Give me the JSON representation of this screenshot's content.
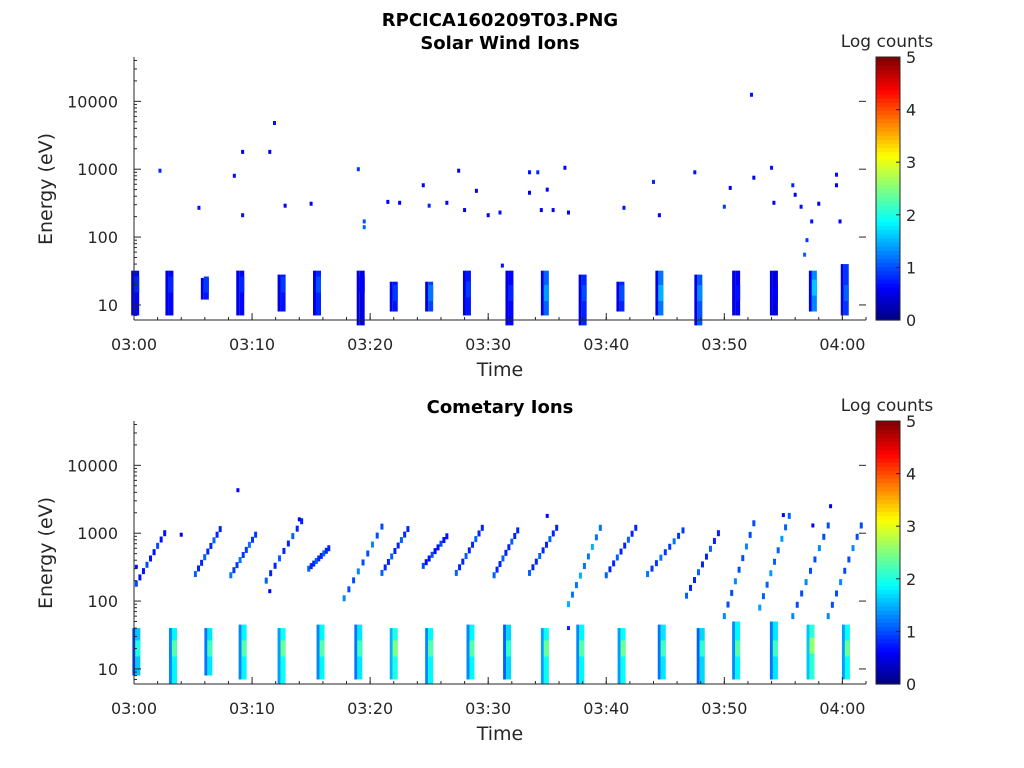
{
  "figure": {
    "main_title": "RPCICA160209T03.PNG"
  },
  "chart_data": [
    {
      "type": "heatmap",
      "title": "Solar Wind Ions",
      "xlabel": "Time",
      "ylabel": "Energy (eV)",
      "x_range": [
        "03:00",
        "04:02"
      ],
      "x_ticks": [
        "03:00",
        "03:10",
        "03:20",
        "03:30",
        "03:40",
        "03:50",
        "04:00"
      ],
      "y_scale": "log",
      "y_range": [
        6,
        45000
      ],
      "y_ticks": [
        "10",
        "100",
        "1000",
        "10000"
      ],
      "colorbar": {
        "title": "Log counts",
        "range": [
          0,
          5
        ],
        "ticks": [
          "0",
          "1",
          "2",
          "3",
          "4",
          "5"
        ],
        "colormap": "jet"
      },
      "blocks": [
        {
          "t_min": 0.1,
          "e": 20,
          "v": 0.8,
          "span": [
            7,
            32
          ]
        },
        {
          "t_min": 3.0,
          "e": 20,
          "v": 0.8,
          "span": [
            7,
            32
          ]
        },
        {
          "t_min": 6.0,
          "e": 20,
          "v": 0.9,
          "span": [
            12,
            25
          ]
        },
        {
          "t_min": 9.0,
          "e": 20,
          "v": 0.8,
          "span": [
            7,
            32
          ]
        },
        {
          "t_min": 12.5,
          "e": 20,
          "v": 0.9,
          "span": [
            8,
            28
          ]
        },
        {
          "t_min": 15.5,
          "e": 20,
          "v": 1.0,
          "span": [
            7,
            32
          ]
        },
        {
          "t_min": 19.2,
          "e": 20,
          "v": 0.6,
          "span": [
            5,
            32
          ]
        },
        {
          "t_min": 22.0,
          "e": 15,
          "v": 0.9,
          "span": [
            8,
            22
          ]
        },
        {
          "t_min": 25.0,
          "e": 15,
          "v": 1.2,
          "span": [
            8,
            22
          ]
        },
        {
          "t_min": 28.2,
          "e": 17,
          "v": 0.9,
          "span": [
            7,
            32
          ]
        },
        {
          "t_min": 31.8,
          "e": 15,
          "v": 0.8,
          "span": [
            5,
            32
          ]
        },
        {
          "t_min": 34.8,
          "e": 15,
          "v": 1.4,
          "span": [
            7,
            32
          ]
        },
        {
          "t_min": 38.0,
          "e": 15,
          "v": 1.0,
          "span": [
            5,
            28
          ]
        },
        {
          "t_min": 41.2,
          "e": 15,
          "v": 1.0,
          "span": [
            8,
            22
          ]
        },
        {
          "t_min": 44.5,
          "e": 15,
          "v": 1.5,
          "span": [
            7,
            32
          ]
        },
        {
          "t_min": 47.8,
          "e": 15,
          "v": 1.3,
          "span": [
            5,
            28
          ]
        },
        {
          "t_min": 51.0,
          "e": 15,
          "v": 0.7,
          "span": [
            7,
            32
          ]
        },
        {
          "t_min": 54.2,
          "e": 15,
          "v": 0.6,
          "span": [
            7,
            32
          ]
        },
        {
          "t_min": 57.5,
          "e": 18,
          "v": 1.6,
          "span": [
            8,
            32
          ]
        },
        {
          "t_min": 60.2,
          "e": 15,
          "v": 1.1,
          "span": [
            7,
            40
          ]
        }
      ],
      "scatter": [
        {
          "t_min": 2.2,
          "e": 950,
          "v": 0.8
        },
        {
          "t_min": 5.5,
          "e": 270,
          "v": 0.7
        },
        {
          "t_min": 8.5,
          "e": 800,
          "v": 0.7
        },
        {
          "t_min": 9.2,
          "e": 1800,
          "v": 0.6
        },
        {
          "t_min": 9.2,
          "e": 210,
          "v": 0.7
        },
        {
          "t_min": 11.5,
          "e": 1800,
          "v": 0.6
        },
        {
          "t_min": 11.9,
          "e": 4800,
          "v": 0.7
        },
        {
          "t_min": 12.8,
          "e": 290,
          "v": 0.6
        },
        {
          "t_min": 15.0,
          "e": 310,
          "v": 0.6
        },
        {
          "t_min": 19.0,
          "e": 1000,
          "v": 0.9
        },
        {
          "t_min": 19.5,
          "e": 170,
          "v": 1.0
        },
        {
          "t_min": 19.5,
          "e": 140,
          "v": 1.1
        },
        {
          "t_min": 21.5,
          "e": 330,
          "v": 0.6
        },
        {
          "t_min": 22.5,
          "e": 320,
          "v": 0.6
        },
        {
          "t_min": 24.5,
          "e": 580,
          "v": 0.6
        },
        {
          "t_min": 25.0,
          "e": 290,
          "v": 0.8
        },
        {
          "t_min": 26.5,
          "e": 320,
          "v": 0.6
        },
        {
          "t_min": 27.5,
          "e": 950,
          "v": 0.6
        },
        {
          "t_min": 28.0,
          "e": 250,
          "v": 0.6
        },
        {
          "t_min": 29.0,
          "e": 480,
          "v": 0.6
        },
        {
          "t_min": 30.0,
          "e": 210,
          "v": 0.6
        },
        {
          "t_min": 31.0,
          "e": 230,
          "v": 0.7
        },
        {
          "t_min": 31.2,
          "e": 38,
          "v": 0.7
        },
        {
          "t_min": 33.5,
          "e": 900,
          "v": 0.7
        },
        {
          "t_min": 33.5,
          "e": 450,
          "v": 0.6
        },
        {
          "t_min": 34.2,
          "e": 900,
          "v": 0.8
        },
        {
          "t_min": 34.5,
          "e": 250,
          "v": 0.6
        },
        {
          "t_min": 35.0,
          "e": 500,
          "v": 0.6
        },
        {
          "t_min": 35.5,
          "e": 250,
          "v": 0.6
        },
        {
          "t_min": 36.5,
          "e": 1050,
          "v": 0.6
        },
        {
          "t_min": 36.8,
          "e": 230,
          "v": 0.6
        },
        {
          "t_min": 41.5,
          "e": 270,
          "v": 0.7
        },
        {
          "t_min": 44.0,
          "e": 650,
          "v": 0.8
        },
        {
          "t_min": 44.5,
          "e": 210,
          "v": 0.6
        },
        {
          "t_min": 47.5,
          "e": 900,
          "v": 0.7
        },
        {
          "t_min": 50.0,
          "e": 280,
          "v": 0.9
        },
        {
          "t_min": 50.5,
          "e": 530,
          "v": 0.6
        },
        {
          "t_min": 52.3,
          "e": 12500,
          "v": 0.7
        },
        {
          "t_min": 52.5,
          "e": 750,
          "v": 0.6
        },
        {
          "t_min": 54.0,
          "e": 1050,
          "v": 0.7
        },
        {
          "t_min": 54.2,
          "e": 320,
          "v": 0.6
        },
        {
          "t_min": 55.8,
          "e": 580,
          "v": 0.8
        },
        {
          "t_min": 56.0,
          "e": 420,
          "v": 0.6
        },
        {
          "t_min": 56.5,
          "e": 280,
          "v": 0.7
        },
        {
          "t_min": 56.8,
          "e": 55,
          "v": 1.1
        },
        {
          "t_min": 57.0,
          "e": 90,
          "v": 0.9
        },
        {
          "t_min": 57.4,
          "e": 170,
          "v": 0.7
        },
        {
          "t_min": 58.0,
          "e": 310,
          "v": 0.6
        },
        {
          "t_min": 59.5,
          "e": 830,
          "v": 0.7
        },
        {
          "t_min": 59.5,
          "e": 580,
          "v": 0.6
        },
        {
          "t_min": 59.8,
          "e": 170,
          "v": 0.6
        }
      ]
    },
    {
      "type": "heatmap",
      "title": "Cometary Ions",
      "xlabel": "Time",
      "ylabel": "Energy (eV)",
      "x_range": [
        "03:00",
        "04:02"
      ],
      "x_ticks": [
        "03:00",
        "03:10",
        "03:20",
        "03:30",
        "03:40",
        "03:50",
        "04:00"
      ],
      "y_scale": "log",
      "y_range": [
        6,
        45000
      ],
      "y_ticks": [
        "10",
        "100",
        "1000",
        "10000"
      ],
      "colorbar": {
        "title": "Log counts",
        "range": [
          0,
          5
        ],
        "ticks": [
          "0",
          "1",
          "2",
          "3",
          "4",
          "5"
        ],
        "colormap": "jet"
      },
      "blocks": [
        {
          "t_min": 0.2,
          "e": 20,
          "v": 2.0,
          "span": [
            8,
            40
          ]
        },
        {
          "t_min": 3.3,
          "e": 20,
          "v": 2.3,
          "span": [
            6,
            40
          ]
        },
        {
          "t_min": 6.3,
          "e": 20,
          "v": 2.2,
          "span": [
            8,
            40
          ]
        },
        {
          "t_min": 9.2,
          "e": 20,
          "v": 2.3,
          "span": [
            7,
            45
          ]
        },
        {
          "t_min": 12.5,
          "e": 20,
          "v": 2.4,
          "span": [
            6,
            40
          ]
        },
        {
          "t_min": 15.8,
          "e": 20,
          "v": 2.3,
          "span": [
            7,
            45
          ]
        },
        {
          "t_min": 19.0,
          "e": 20,
          "v": 2.2,
          "span": [
            7,
            45
          ]
        },
        {
          "t_min": 22.0,
          "e": 20,
          "v": 2.5,
          "span": [
            7,
            40
          ]
        },
        {
          "t_min": 25.0,
          "e": 20,
          "v": 2.3,
          "span": [
            6,
            40
          ]
        },
        {
          "t_min": 28.5,
          "e": 20,
          "v": 2.3,
          "span": [
            7,
            45
          ]
        },
        {
          "t_min": 31.6,
          "e": 20,
          "v": 2.1,
          "span": [
            7,
            45
          ]
        },
        {
          "t_min": 34.8,
          "e": 20,
          "v": 2.4,
          "span": [
            6,
            40
          ]
        },
        {
          "t_min": 37.8,
          "e": 20,
          "v": 2.3,
          "span": [
            6,
            45
          ]
        },
        {
          "t_min": 41.3,
          "e": 20,
          "v": 2.4,
          "span": [
            6,
            40
          ]
        },
        {
          "t_min": 44.7,
          "e": 20,
          "v": 2.2,
          "span": [
            7,
            45
          ]
        },
        {
          "t_min": 48.0,
          "e": 20,
          "v": 2.1,
          "span": [
            6,
            40
          ]
        },
        {
          "t_min": 51.0,
          "e": 20,
          "v": 2.3,
          "span": [
            7,
            50
          ]
        },
        {
          "t_min": 54.2,
          "e": 20,
          "v": 2.2,
          "span": [
            7,
            50
          ]
        },
        {
          "t_min": 57.3,
          "e": 22,
          "v": 2.6,
          "span": [
            7,
            45
          ]
        },
        {
          "t_min": 60.3,
          "e": 20,
          "v": 2.4,
          "span": [
            7,
            45
          ]
        }
      ],
      "streaks": [
        {
          "t_start": 0.2,
          "t_end": 2.6,
          "e_start": 180,
          "e_end": 1000,
          "v": 0.7
        },
        {
          "t_start": 5.2,
          "t_end": 7.3,
          "e_start": 250,
          "e_end": 1150,
          "v": 0.8
        },
        {
          "t_start": 8.2,
          "t_end": 10.3,
          "e_start": 240,
          "e_end": 950,
          "v": 0.9
        },
        {
          "t_start": 11.2,
          "t_end": 14.2,
          "e_start": 200,
          "e_end": 1500,
          "v": 0.8
        },
        {
          "t_start": 14.8,
          "t_end": 16.5,
          "e_start": 300,
          "e_end": 600,
          "v": 0.8
        },
        {
          "t_start": 17.8,
          "t_end": 21.0,
          "e_start": 110,
          "e_end": 1250,
          "v": 1.0
        },
        {
          "t_start": 21.0,
          "t_end": 23.2,
          "e_start": 260,
          "e_end": 1150,
          "v": 0.8
        },
        {
          "t_start": 24.5,
          "t_end": 26.5,
          "e_start": 330,
          "e_end": 900,
          "v": 0.7
        },
        {
          "t_start": 27.3,
          "t_end": 29.5,
          "e_start": 260,
          "e_end": 1200,
          "v": 0.8
        },
        {
          "t_start": 30.5,
          "t_end": 32.5,
          "e_start": 240,
          "e_end": 1100,
          "v": 0.8
        },
        {
          "t_start": 33.5,
          "t_end": 35.8,
          "e_start": 260,
          "e_end": 1200,
          "v": 0.8
        },
        {
          "t_start": 36.8,
          "t_end": 39.5,
          "e_start": 90,
          "e_end": 1200,
          "v": 1.2
        },
        {
          "t_start": 40.0,
          "t_end": 42.5,
          "e_start": 240,
          "e_end": 1200,
          "v": 0.8
        },
        {
          "t_start": 43.5,
          "t_end": 46.5,
          "e_start": 250,
          "e_end": 1100,
          "v": 0.9
        },
        {
          "t_start": 46.8,
          "t_end": 49.5,
          "e_start": 120,
          "e_end": 1000,
          "v": 0.8
        },
        {
          "t_start": 50.0,
          "t_end": 52.5,
          "e_start": 60,
          "e_end": 1400,
          "v": 1.0
        },
        {
          "t_start": 53.0,
          "t_end": 55.5,
          "e_start": 80,
          "e_end": 1800,
          "v": 1.1
        },
        {
          "t_start": 55.8,
          "t_end": 58.8,
          "e_start": 60,
          "e_end": 1300,
          "v": 1.0
        },
        {
          "t_start": 58.8,
          "t_end": 61.6,
          "e_start": 60,
          "e_end": 1300,
          "v": 1.0
        }
      ],
      "scatter": [
        {
          "t_min": 0.2,
          "e": 320,
          "v": 0.7
        },
        {
          "t_min": 4.0,
          "e": 950,
          "v": 0.6
        },
        {
          "t_min": 8.8,
          "e": 4300,
          "v": 0.6
        },
        {
          "t_min": 11.5,
          "e": 140,
          "v": 0.6
        },
        {
          "t_min": 14.0,
          "e": 1600,
          "v": 0.6
        },
        {
          "t_min": 35.0,
          "e": 1800,
          "v": 0.6
        },
        {
          "t_min": 57.5,
          "e": 1300,
          "v": 0.6
        },
        {
          "t_min": 59.0,
          "e": 2500,
          "v": 0.6
        },
        {
          "t_min": 55.0,
          "e": 1850,
          "v": 0.6
        },
        {
          "t_min": 36.8,
          "e": 40,
          "v": 0.8
        }
      ]
    }
  ]
}
